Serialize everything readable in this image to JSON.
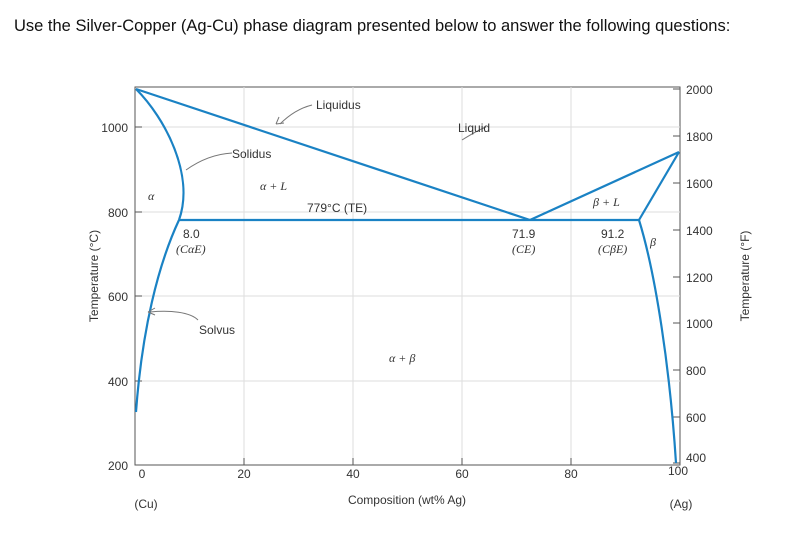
{
  "heading": "Use the Silver-Copper (Ag-Cu) phase diagram presented below to answer the following questions:",
  "axes": {
    "left_label": "Temperature (°C)",
    "right_label": "Temperature (°F)",
    "bottom_label": "Composition (wt% Ag)",
    "left_ticks": [
      "1000",
      "800",
      "600",
      "400",
      "200"
    ],
    "right_ticks": [
      "2000",
      "1800",
      "1600",
      "1400",
      "1200",
      "1000",
      "800",
      "600",
      "400"
    ],
    "bottom_ticks": [
      "0",
      "20",
      "40",
      "60",
      "80",
      "100"
    ],
    "left_end": "(Cu)",
    "right_end": "(Ag)"
  },
  "labels": {
    "liquidus": "Liquidus",
    "liquid": "Liquid",
    "solidus": "Solidus",
    "solvus": "Solvus",
    "alpha": "α",
    "beta": "β",
    "alpha_plus_l": "α + L",
    "beta_plus_l": "β + L",
    "alpha_plus_beta": "α + β",
    "eutectic_temp": "779°C (TE)",
    "c_alpha_value": "8.0",
    "c_alpha_name": "(CαE)",
    "c_e_value": "71.9",
    "c_e_name": "(CE)",
    "c_beta_value": "91.2",
    "c_beta_name": "(CβE)"
  },
  "colors": {
    "phase_line": "#1a82c4",
    "axis": "#555555",
    "grid": "#dddddd"
  }
}
